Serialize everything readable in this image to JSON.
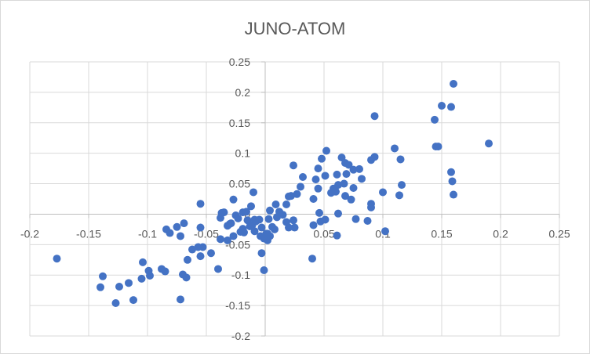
{
  "chart_data": {
    "type": "scatter",
    "title": "JUNO-ATOM",
    "xlabel": "",
    "ylabel": "",
    "xlim": [
      -0.2,
      0.25
    ],
    "ylim": [
      -0.2,
      0.25
    ],
    "x_ticks": [
      -0.2,
      -0.15,
      -0.1,
      -0.05,
      0,
      0.05,
      0.1,
      0.15,
      0.2,
      0.25
    ],
    "y_ticks": [
      -0.2,
      -0.15,
      -0.1,
      -0.05,
      0,
      0.05,
      0.1,
      0.15,
      0.2,
      0.25
    ],
    "x_tick_labels": [
      "-0.2",
      "-0.15",
      "-0.1",
      "-0.05",
      "0",
      "0.05",
      "0.1",
      "0.15",
      "0.2",
      "0.25"
    ],
    "y_tick_labels": [
      "-0.2",
      "-0.15",
      "-0.1",
      "-0.05",
      "0",
      "0.05",
      "0.1",
      "0.15",
      "0.2",
      "0.25"
    ],
    "grid": "vertical-and-horizontal",
    "legend": "none",
    "colors": {
      "marker": "#4472C4",
      "grid": "#d9d9d9",
      "axis": "#bfbfbf",
      "text": "#595959",
      "border": "#d9d9d9"
    },
    "series": [
      {
        "x": [
          0.16,
          0.15,
          0.158,
          0.144,
          0.093,
          0.147,
          0.19,
          0.145,
          0.158,
          0.159,
          0.16,
          0.052,
          0.065,
          0.093,
          0.11,
          0.048,
          0.068,
          0.071,
          0.09,
          0.115,
          0.045,
          0.024,
          0.061,
          0.069,
          0.08,
          0.075,
          0.043,
          0.051,
          0.032,
          0.062,
          0.03,
          0.045,
          0.082,
          0.056,
          0.068,
          0.075,
          0.1,
          0.116,
          0.114,
          0.02,
          0.027,
          0.022,
          0.041,
          0.058,
          0.06,
          0.018,
          0.067,
          0.073,
          0.09,
          0.077,
          0.009,
          0.012,
          0.015,
          0.018,
          0.025,
          0.041,
          0.051,
          0.061,
          0.046,
          0.047,
          0.062,
          0.09,
          0.087,
          0.102,
          0.02,
          0.024,
          0.003,
          -0.012,
          -0.027,
          -0.01,
          -0.019,
          -0.032,
          -0.055,
          -0.075,
          -0.084,
          -0.081,
          -0.072,
          -0.069,
          -0.053,
          -0.038,
          -0.032,
          -0.021,
          -0.027,
          -0.013,
          0.002,
          -0.001,
          -0.008,
          -0.003,
          0.004,
          -0.015,
          -0.023,
          -0.019,
          -0.029,
          -0.038,
          -0.057,
          -0.062,
          -0.046,
          -0.04,
          -0.055,
          -0.066,
          -0.098,
          -0.105,
          -0.116,
          -0.085,
          -0.07,
          -0.099,
          -0.067,
          -0.088,
          -0.104,
          -0.03,
          -0.035,
          -0.005,
          0.002,
          -0.003,
          0.004,
          0.04,
          -0.124,
          -0.14,
          -0.138,
          -0.112,
          -0.127,
          -0.072,
          -0.177,
          -0.055,
          -0.037,
          -0.025,
          -0.016,
          -0.009,
          0.01,
          0.008,
          0.001,
          -0.004,
          0.006,
          -0.011,
          -0.018,
          -0.009,
          -0.001
        ],
        "y": [
          0.214,
          0.178,
          0.176,
          0.155,
          0.161,
          0.111,
          0.116,
          0.111,
          0.069,
          0.054,
          0.032,
          0.104,
          0.093,
          0.094,
          0.108,
          0.091,
          0.084,
          0.081,
          0.089,
          0.09,
          0.075,
          0.08,
          0.065,
          0.066,
          0.074,
          0.073,
          0.057,
          0.063,
          0.061,
          0.048,
          0.045,
          0.042,
          0.058,
          0.035,
          0.03,
          0.043,
          0.036,
          0.048,
          0.031,
          0.029,
          0.033,
          0.03,
          0.025,
          0.042,
          0.037,
          0.016,
          0.05,
          0.024,
          0.017,
          -0.008,
          0.016,
          0.004,
          -0.001,
          -0.013,
          -0.022,
          -0.018,
          -0.009,
          -0.035,
          0.002,
          -0.012,
          0.001,
          0.011,
          -0.011,
          -0.028,
          -0.022,
          -0.01,
          -0.008,
          0.013,
          0.024,
          0.036,
          0.003,
          -0.019,
          -0.022,
          -0.021,
          -0.025,
          -0.031,
          -0.036,
          -0.015,
          -0.054,
          -0.041,
          -0.043,
          -0.029,
          -0.036,
          -0.02,
          -0.032,
          -0.04,
          -0.012,
          -0.022,
          -0.036,
          -0.01,
          -0.007,
          -0.024,
          -0.015,
          -0.006,
          -0.054,
          -0.058,
          -0.064,
          -0.09,
          -0.069,
          -0.075,
          -0.101,
          -0.106,
          -0.113,
          -0.094,
          -0.099,
          -0.093,
          -0.104,
          -0.09,
          -0.079,
          -0.016,
          0.003,
          -0.009,
          -0.043,
          -0.064,
          0.006,
          -0.073,
          -0.119,
          -0.12,
          -0.102,
          -0.141,
          -0.146,
          -0.14,
          -0.073,
          0.017,
          0.002,
          -0.002,
          0.004,
          -0.028,
          -0.005,
          -0.025,
          -0.032,
          -0.036,
          -0.021,
          -0.018,
          -0.03,
          -0.009,
          -0.092
        ]
      }
    ]
  }
}
